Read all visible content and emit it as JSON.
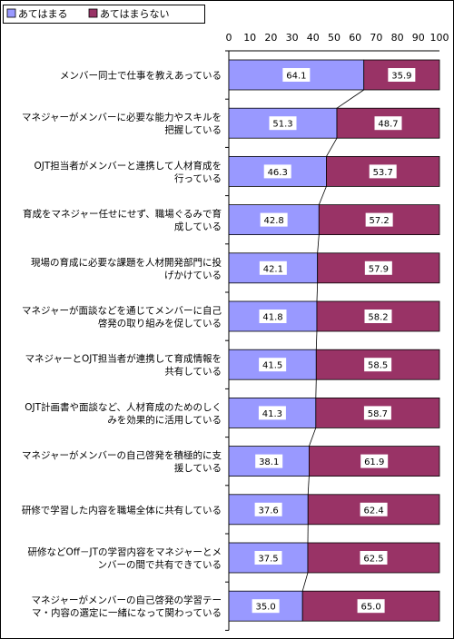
{
  "chart_data": {
    "type": "bar",
    "orientation": "horizontal",
    "stacked": true,
    "title": "",
    "xlabel": "",
    "ylabel": "",
    "xlim": [
      0,
      100
    ],
    "x_ticks": [
      "0",
      "10",
      "20",
      "30",
      "40",
      "50",
      "60",
      "70",
      "80",
      "90",
      "100"
    ],
    "legend_position": "top-left",
    "categories": [
      [
        "メンバー同士で仕事を教えあっている"
      ],
      [
        "マネジャーがメンバーに必要な能力やスキルを",
        "把握している"
      ],
      [
        "OJT担当者がメンバーと連携して人材育成を",
        "行っている"
      ],
      [
        "育成をマネジャー任せにせず、職場ぐるみで育",
        "成している"
      ],
      [
        "現場の育成に必要な課題を人材開発部門に投",
        "げかけている"
      ],
      [
        "マネジャーが面談などを通じてメンバーに自己",
        "啓発の取り組みを促している"
      ],
      [
        "マネジャーとOJT担当者が連携して育成情報を",
        "共有している"
      ],
      [
        "OJT計画書や面談など、人材育成のためのしく",
        "みを効果的に活用している"
      ],
      [
        "マネジャーがメンバーの自己啓発を積極的に支",
        "援している"
      ],
      [
        "研修で学習した内容を職場全体に共有している"
      ],
      [
        "研修などOff－JTの学習内容をマネジャーとメ",
        "ンバーの間で共有できている"
      ],
      [
        "マネジャーがメンバーの自己啓発の学習テー",
        "マ・内容の選定に一緒になって関わっている"
      ]
    ],
    "series": [
      {
        "name": "あてはまる",
        "color": "#9999ff",
        "values": [
          64.1,
          51.3,
          46.3,
          42.8,
          42.1,
          41.8,
          41.5,
          41.3,
          38.1,
          37.6,
          37.5,
          35.0
        ],
        "labels": [
          "64.1",
          "51.3",
          "46.3",
          "42.8",
          "42.1",
          "41.8",
          "41.5",
          "41.3",
          "38.1",
          "37.6",
          "37.5",
          "35.0"
        ]
      },
      {
        "name": "あてはまらない",
        "color": "#993366",
        "values": [
          35.9,
          48.7,
          53.7,
          57.2,
          57.9,
          58.2,
          58.5,
          58.7,
          61.9,
          62.4,
          62.5,
          65.0
        ],
        "labels": [
          "35.9",
          "48.7",
          "53.7",
          "57.2",
          "57.9",
          "58.2",
          "58.5",
          "58.7",
          "61.9",
          "62.4",
          "62.5",
          "65.0"
        ]
      }
    ]
  }
}
